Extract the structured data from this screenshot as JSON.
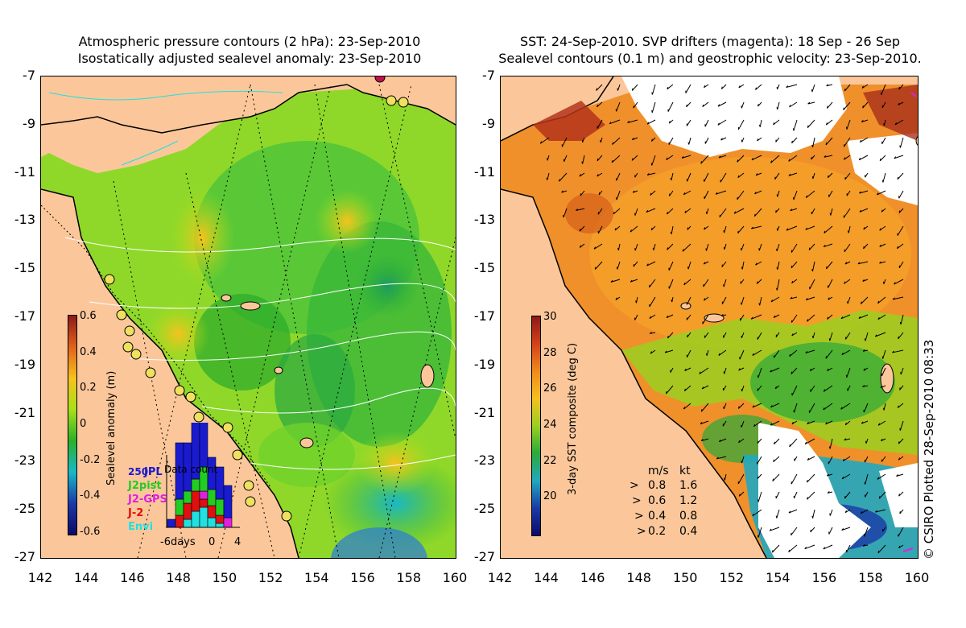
{
  "left_panel": {
    "title_line1": "Atmospheric pressure contours (2 hPa): 23-Sep-2010",
    "title_line2": "Isostatically adjusted sealevel anomaly: 23-Sep-2010",
    "colorbar": {
      "label": "Sealevel anomaly (m)",
      "ticks": [
        "0.6",
        "0.4",
        "0.2",
        "0",
        "-0.2",
        "-0.4",
        "-0.6"
      ],
      "colors": [
        "#8b1a1a",
        "#e0621c",
        "#f7c21e",
        "#a8e01a",
        "#2ab02a",
        "#19b8c8",
        "#1a3aa8",
        "#0a0a6a"
      ]
    },
    "inset": {
      "title": "Data count",
      "max_label": "250",
      "xticks": [
        "-6days",
        "0",
        "4"
      ],
      "legend": [
        {
          "label": "JPL",
          "color": "#1a1ad0"
        },
        {
          "label": "J2pist",
          "color": "#22cc22"
        },
        {
          "label": "J2-GPS",
          "color": "#e020e0"
        },
        {
          "label": "J-2",
          "color": "#e01010"
        },
        {
          "label": "Envi",
          "color": "#20e0e0"
        }
      ]
    }
  },
  "right_panel": {
    "title_line1": "SST: 24-Sep-2010. SVP drifters (magenta): 18 Sep - 26 Sep",
    "title_line2": "Sealevel contours (0.1 m) and geostrophic velocity: 23-Sep-2010.",
    "colorbar": {
      "label": "3-day SST composite (deg C)",
      "ticks": [
        "30",
        "28",
        "26",
        "24",
        "22",
        "20"
      ],
      "colors": [
        "#8b1a1a",
        "#d4401a",
        "#f08a1e",
        "#f5c020",
        "#9ad020",
        "#2aaa3a",
        "#20a8c0",
        "#1a3aa8",
        "#0a0a6a"
      ]
    },
    "velocity_legend": {
      "header_ms": "m/s",
      "header_kt": "kt",
      "rows": [
        {
          "ms": "0.8",
          "kt": "1.6"
        },
        {
          "ms": "0.6",
          "kt": "1.2"
        },
        {
          "ms": "0.4",
          "kt": "0.8"
        },
        {
          "ms": "0.2",
          "kt": "0.4"
        }
      ]
    }
  },
  "y_axis_labels": [
    "-7",
    "-9",
    "-11",
    "-13",
    "-15",
    "-17",
    "-19",
    "-21",
    "-23",
    "-25",
    "-27"
  ],
  "x_axis_labels": [
    "142",
    "144",
    "146",
    "148",
    "150",
    "152",
    "154",
    "156",
    "158",
    "160"
  ],
  "credit": "© CSIRO Plotted 28-Sep-2010 08:33",
  "colors": {
    "land": "#fbc79a",
    "coast": "#000000",
    "pressure_contour": "#ffffff",
    "drifter": "#e020e0",
    "cloud": "#ffffff"
  }
}
